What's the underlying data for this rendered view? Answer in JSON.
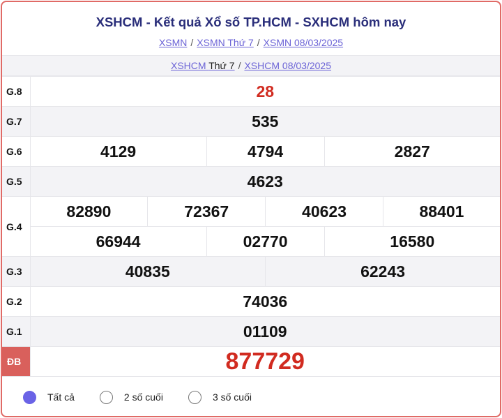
{
  "header": {
    "title": "XSHCM - Kết quả Xổ số TP.HCM - SXHCM hôm nay",
    "crumbs": [
      "XSMN",
      "XSMN Thứ 7",
      "XSMN 08/03/2025"
    ]
  },
  "subcrumbs": {
    "a": "XSHCM",
    "a_day": "Thứ 7",
    "b": "XSHCM 08/03/2025"
  },
  "results": {
    "g8": {
      "label": "G.8",
      "values": [
        "28"
      ]
    },
    "g7": {
      "label": "G.7",
      "values": [
        "535"
      ]
    },
    "g6": {
      "label": "G.6",
      "values": [
        "4129",
        "4794",
        "2827"
      ]
    },
    "g5": {
      "label": "G.5",
      "values": [
        "4623"
      ]
    },
    "g4": {
      "label": "G.4",
      "values": [
        "82890",
        "72367",
        "40623",
        "88401",
        "66944",
        "02770",
        "16580"
      ]
    },
    "g3": {
      "label": "G.3",
      "values": [
        "40835",
        "62243"
      ]
    },
    "g2": {
      "label": "G.2",
      "values": [
        "74036"
      ]
    },
    "g1": {
      "label": "G.1",
      "values": [
        "01109"
      ]
    },
    "db": {
      "label": "ĐB",
      "values": [
        "877729"
      ]
    }
  },
  "filter": {
    "options": [
      "Tất cả",
      "2 số cuối",
      "3 số cuối"
    ],
    "selected": "Tất cả"
  },
  "colors": {
    "accent": "#d12b20",
    "link": "#6b63d6",
    "title": "#2a2e7a",
    "radio": "#6a63e6"
  }
}
